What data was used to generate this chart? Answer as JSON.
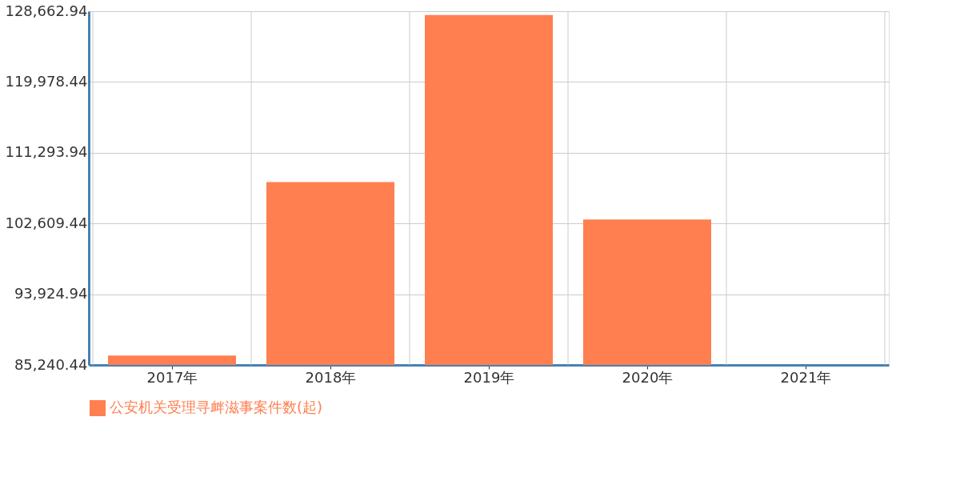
{
  "chart_data": {
    "type": "bar",
    "categories": [
      "2017年",
      "2018年",
      "2019年",
      "2020年",
      "2021年"
    ],
    "series": [
      {
        "name": "公安机关受理寻衅滋事案件数(起)",
        "color": "#ff7f50",
        "values": [
          86400,
          107700,
          128200,
          103100,
          null
        ]
      }
    ],
    "ylim": [
      85240.44,
      128662.94
    ],
    "yticks": [
      {
        "value": 85240.44,
        "label": "85,240.44"
      },
      {
        "value": 93924.94,
        "label": "93,924.94"
      },
      {
        "value": 102609.44,
        "label": "102,609.44"
      },
      {
        "value": 111293.94,
        "label": "111,293.94"
      },
      {
        "value": 119978.44,
        "label": "119,978.44"
      },
      {
        "value": 128662.94,
        "label": "128,662.94"
      }
    ],
    "grid": true,
    "legend": "bottom"
  }
}
